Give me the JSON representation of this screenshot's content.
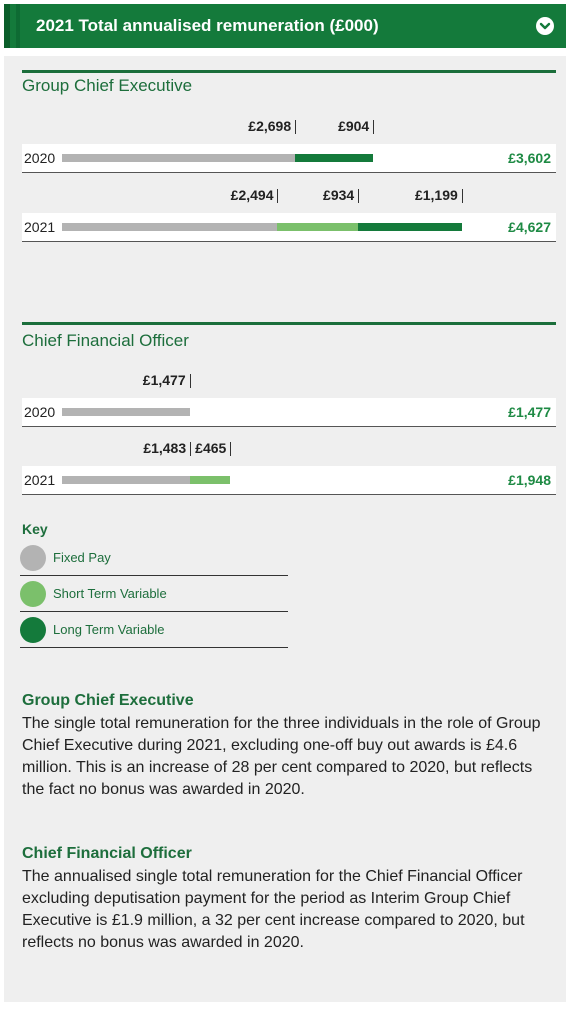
{
  "header": {
    "title": "2021 Total annualised remuneration (£000)",
    "accent_color": "#147a3b",
    "toggle_icon": "chevron-down-icon"
  },
  "colors": {
    "fixed": "#b3b3b3",
    "short_term": "#7bc06b",
    "long_term": "#147a3b"
  },
  "chart_data": [
    {
      "type": "bar",
      "orientation": "horizontal",
      "stacked": true,
      "title": "Group Chief Executive",
      "categories": [
        "2020",
        "2021"
      ],
      "series": [
        {
          "name": "Fixed Pay",
          "values": [
            2698,
            2494
          ],
          "labels": [
            "£2,698",
            "£2,494"
          ]
        },
        {
          "name": "Short Term Variable",
          "values": [
            0,
            934
          ],
          "labels": [
            "",
            "£934"
          ]
        },
        {
          "name": "Long Term Variable",
          "values": [
            904,
            1199
          ],
          "labels": [
            "£904",
            "£1,199"
          ]
        }
      ],
      "totals": [
        "£3,602",
        "£4,627"
      ]
    },
    {
      "type": "bar",
      "orientation": "horizontal",
      "stacked": true,
      "title": "Chief Financial Officer",
      "categories": [
        "2020",
        "2021"
      ],
      "series": [
        {
          "name": "Fixed Pay",
          "values": [
            1477,
            1483
          ],
          "labels": [
            "£1,477",
            "£1,483"
          ]
        },
        {
          "name": "Short Term Variable",
          "values": [
            0,
            465
          ],
          "labels": [
            "",
            "£465"
          ]
        },
        {
          "name": "Long Term Variable",
          "values": [
            0,
            0
          ],
          "labels": [
            "",
            ""
          ]
        }
      ],
      "totals": [
        "£1,477",
        "£1,948"
      ]
    }
  ],
  "key": {
    "title": "Key",
    "items": [
      "Fixed Pay",
      "Short Term Variable",
      "Long Term Variable"
    ]
  },
  "notes": [
    {
      "heading": "Group Chief Executive",
      "text": "The single total remuneration for the three individuals in the role of Group Chief Executive during 2021, excluding one-off buy out awards is £4.6 million. This is an increase of 28 per cent compared to 2020, but reflects the fact no bonus was awarded in 2020."
    },
    {
      "heading": "Chief Financial Officer",
      "text": "The annualised single total remuneration for the Chief Financial Officer excluding deputisation payment for the period as Interim Group Chief Executive is £1.9 million, a 32 per cent increase compared to 2020, but reflects no bonus was awarded in 2020."
    }
  ]
}
